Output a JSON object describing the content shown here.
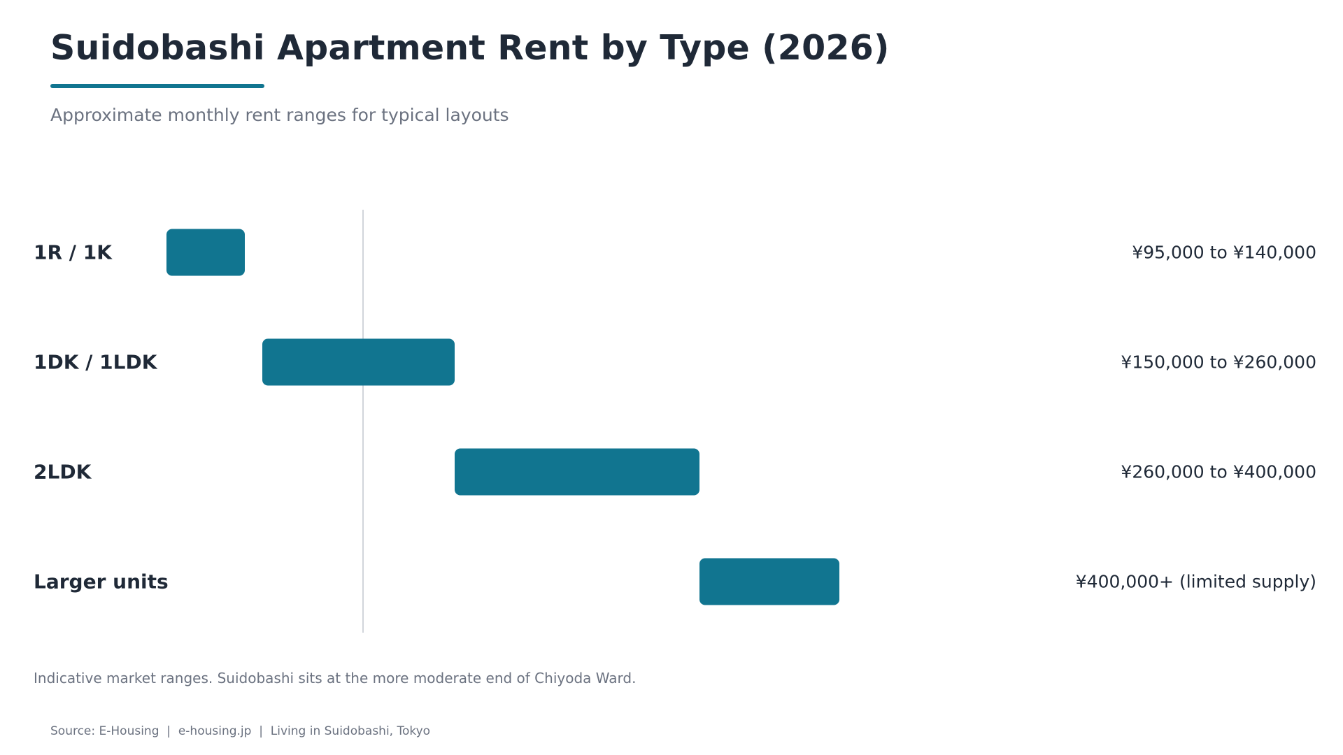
{
  "header": {
    "title": "Suidobashi Apartment Rent by Type (2026)",
    "subtitle": "Approximate monthly rent ranges for typical layouts"
  },
  "colors": {
    "accent": "#117590",
    "text": "#1f2937",
    "muted": "#6b7280",
    "divider": "#d1d5db"
  },
  "chart_data": {
    "type": "bar",
    "subtype": "floating-range",
    "title": "Suidobashi Apartment Rent by Type (2026)",
    "subtitle": "Approximate monthly rent ranges for typical layouts",
    "categories": [
      "1R / 1K",
      "1DK / 1LDK",
      "2LDK",
      "Larger units"
    ],
    "ranges": [
      [
        95000,
        140000
      ],
      [
        150000,
        260000
      ],
      [
        260000,
        400000
      ],
      [
        400000,
        480000
      ]
    ],
    "value_labels": [
      "¥95,000 to ¥140,000",
      "¥150,000 to ¥260,000",
      "¥260,000 to ¥400,000",
      "¥400,000+ (limited supply)"
    ],
    "xlim": [
      0,
      750000
    ],
    "xlabel": "",
    "ylabel": "",
    "grid": false,
    "legend": "none"
  },
  "footer": {
    "note": "Indicative market ranges. Suidobashi sits at the more moderate end of Chiyoda Ward.",
    "source": "Source: E-Housing  |  e-housing.jp  |  Living in Suidobashi, Tokyo"
  }
}
